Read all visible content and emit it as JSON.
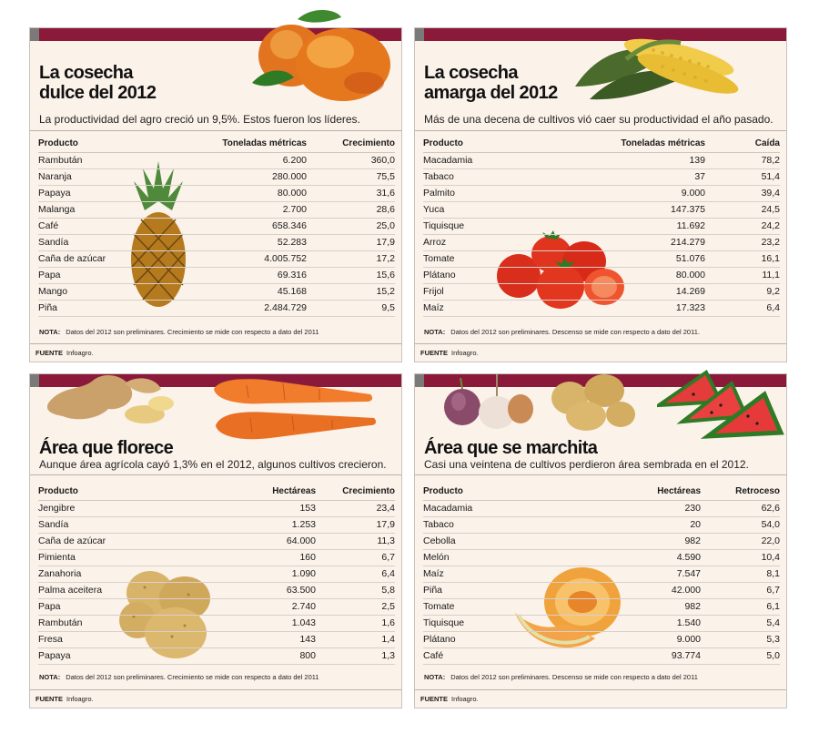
{
  "panels": [
    {
      "title_line1": "La cosecha",
      "title_line2": "dulce del 2012",
      "subtitle": "La productividad del agro creció un 9,5%. Estos fueron los líderes.",
      "columns": [
        "Producto",
        "Toneladas métricas",
        "Crecimiento"
      ],
      "rows": [
        [
          "Rambután",
          "6.200",
          "360,0"
        ],
        [
          "Naranja",
          "280.000",
          "75,5"
        ],
        [
          "Papaya",
          "80.000",
          "31,6"
        ],
        [
          "Malanga",
          "2.700",
          "28,6"
        ],
        [
          "Café",
          "658.346",
          "25,0"
        ],
        [
          "Sandía",
          "52.283",
          "17,9"
        ],
        [
          "Caña de azúcar",
          "4.005.752",
          "17,2"
        ],
        [
          "Papa",
          "69.316",
          "15,6"
        ],
        [
          "Mango",
          "45.168",
          "15,2"
        ],
        [
          "Piña",
          "2.484.729",
          "9,5"
        ]
      ],
      "note_label": "NOTA:",
      "note_text": "Datos del 2012 son preliminares. Crecimiento se mide con respecto a dato del 2011",
      "source_label": "FUENTE",
      "source_text": "Infoagro."
    },
    {
      "title_line1": "La cosecha",
      "title_line2": "amarga del 2012",
      "subtitle": "Más de una decena de cultivos vió caer su productividad el año pasado.",
      "columns": [
        "Producto",
        "Toneladas métricas",
        "Caída"
      ],
      "rows": [
        [
          "Macadamia",
          "139",
          "78,2"
        ],
        [
          "Tabaco",
          "37",
          "51,4"
        ],
        [
          "Palmito",
          "9.000",
          "39,4"
        ],
        [
          "Yuca",
          "147.375",
          "24,5"
        ],
        [
          "Tiquisque",
          "11.692",
          "24,2"
        ],
        [
          "Arroz",
          "214.279",
          "23,2"
        ],
        [
          "Tomate",
          "51.076",
          "16,1"
        ],
        [
          "Plátano",
          "80.000",
          "11,1"
        ],
        [
          "Frijol",
          "14.269",
          "9,2"
        ],
        [
          "Maíz",
          "17.323",
          "6,4"
        ]
      ],
      "note_label": "NOTA:",
      "note_text": "Datos del 2012 son preliminares. Descenso se mide con respecto a dato del 2011.",
      "source_label": "FUENTE",
      "source_text": "Infoagro."
    },
    {
      "title_line1": "Área que florece",
      "subtitle": "Aunque área agrícola cayó 1,3% en el 2012, algunos cultivos crecieron.",
      "columns": [
        "Producto",
        "Hectáreas",
        "Crecimiento"
      ],
      "rows": [
        [
          "Jengibre",
          "153",
          "23,4"
        ],
        [
          "Sandía",
          "1.253",
          "17,9"
        ],
        [
          "Caña de azúcar",
          "64.000",
          "11,3"
        ],
        [
          "Pimienta",
          "160",
          "6,7"
        ],
        [
          "Zanahoria",
          "1.090",
          "6,4"
        ],
        [
          "Palma aceitera",
          "63.500",
          "5,8"
        ],
        [
          "Papa",
          "2.740",
          "2,5"
        ],
        [
          "Rambután",
          "1.043",
          "1,6"
        ],
        [
          "Fresa",
          "143",
          "1,4"
        ],
        [
          "Papaya",
          "800",
          "1,3"
        ]
      ],
      "note_label": "NOTA:",
      "note_text": "Datos del 2012 son preliminares. Crecimiento se mide con respecto a dato del 2011",
      "source_label": "FUENTE",
      "source_text": "Infoagro."
    },
    {
      "title_line1": "Área que se marchita",
      "subtitle": "Casi una veintena de cultivos perdieron área sembrada en el 2012.",
      "columns": [
        "Producto",
        "Hectáreas",
        "Retroceso"
      ],
      "rows": [
        [
          "Macadamia",
          "230",
          "62,6"
        ],
        [
          "Tabaco",
          "20",
          "54,0"
        ],
        [
          "Cebolla",
          "982",
          "22,0"
        ],
        [
          "Melón",
          "4.590",
          "10,4"
        ],
        [
          "Maíz",
          "7.547",
          "8,1"
        ],
        [
          "Piña",
          "42.000",
          "6,7"
        ],
        [
          "Tomate",
          "982",
          "6,1"
        ],
        [
          "Tiquisque",
          "1.540",
          "5,4"
        ],
        [
          "Plátano",
          "9.000",
          "5,3"
        ],
        [
          "Café",
          "93.774",
          "5,0"
        ]
      ],
      "note_label": "NOTA:",
      "note_text": "Datos del 2012 son preliminares. Descenso se mide con respecto a dato del 2011",
      "source_label": "FUENTE",
      "source_text": "Infoagro."
    }
  ],
  "illustrations": [
    "mango-illustration",
    "corn-illustration",
    "pineapple-illustration",
    "tomato-illustration",
    "ginger-illustration",
    "carrot-illustration",
    "potato-illustration",
    "onion-garlic-illustration",
    "watermelon-illustration",
    "melon-illustration"
  ],
  "colors": {
    "accent_bar": "#8b1a3a",
    "panel_bg": "#fbf2ea",
    "bar_square": "#7a7a7a"
  }
}
